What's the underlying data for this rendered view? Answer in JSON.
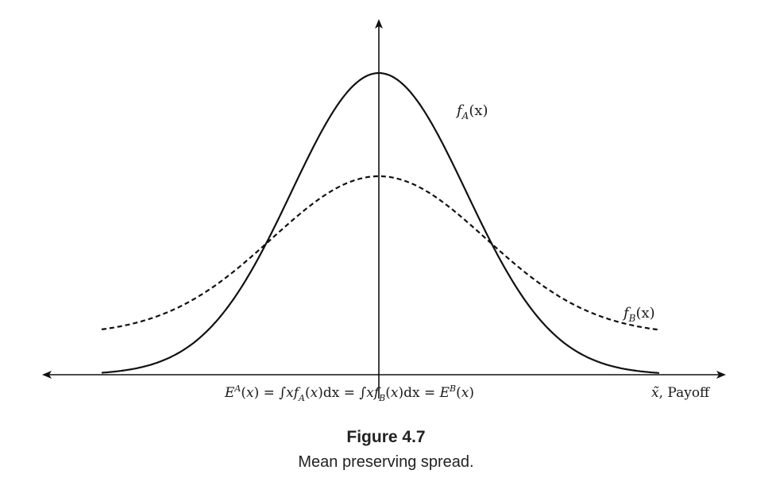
{
  "figure": {
    "curve_a_label": {
      "base": "f",
      "sub": "A",
      "arg": "(x)"
    },
    "curve_b_label": {
      "base": "f",
      "sub": "B",
      "arg": "(x)"
    },
    "axis_label": {
      "symbol": "x̃",
      "text": ", Payoff"
    },
    "equation": {
      "lhs_sup": "A",
      "int1_sub": "A",
      "int2_sub": "B",
      "rhs_sup": "B"
    },
    "curves": {
      "a_style": "solid",
      "b_style": "dashed"
    }
  },
  "caption": {
    "title": "Figure 4.7",
    "text": "Mean preserving spread."
  }
}
